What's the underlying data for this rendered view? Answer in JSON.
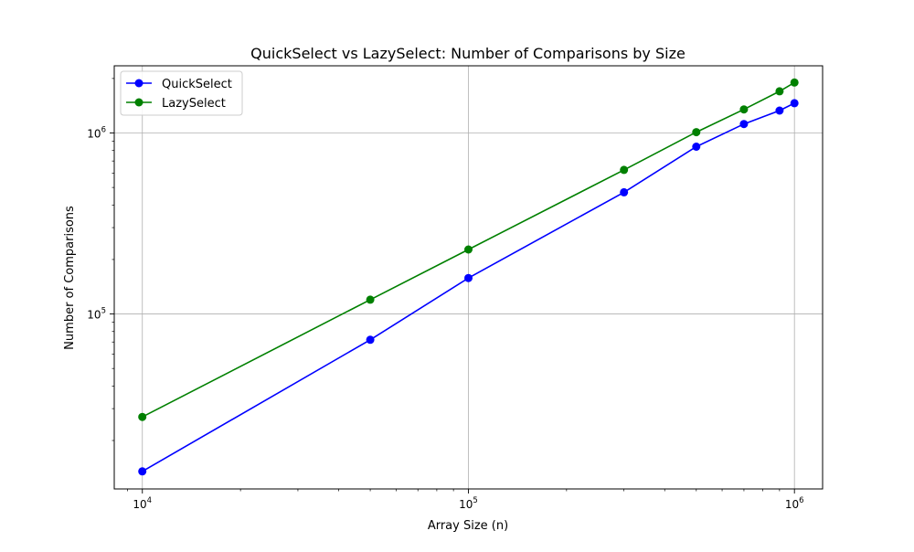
{
  "chart_data": {
    "type": "line",
    "title": "QuickSelect vs LazySelect: Number of Comparisons by Size",
    "xlabel": "Array Size (n)",
    "ylabel": "Number of Comparisons",
    "xscale": "log",
    "yscale": "log",
    "xlim": [
      8200,
      1220000
    ],
    "ylim": [
      10800,
      2350000
    ],
    "x_ticks": [
      {
        "base": "10",
        "exp": "4",
        "value": 10000
      },
      {
        "base": "10",
        "exp": "5",
        "value": 100000
      },
      {
        "base": "10",
        "exp": "6",
        "value": 1000000
      }
    ],
    "y_ticks": [
      {
        "base": "10",
        "exp": "5",
        "value": 100000
      },
      {
        "base": "10",
        "exp": "6",
        "value": 1000000
      }
    ],
    "grid": true,
    "legend_position": "top-left",
    "x": [
      10000,
      50000,
      100000,
      300000,
      500000,
      700000,
      900000,
      1000000
    ],
    "series": [
      {
        "name": "QuickSelect",
        "color": "#0000ff",
        "values": [
          13500,
          72000,
          158000,
          470000,
          840000,
          1120000,
          1330000,
          1460000
        ]
      },
      {
        "name": "LazySelect",
        "color": "#008000",
        "values": [
          27000,
          120000,
          227000,
          625000,
          1010000,
          1350000,
          1700000,
          1900000
        ]
      }
    ]
  }
}
